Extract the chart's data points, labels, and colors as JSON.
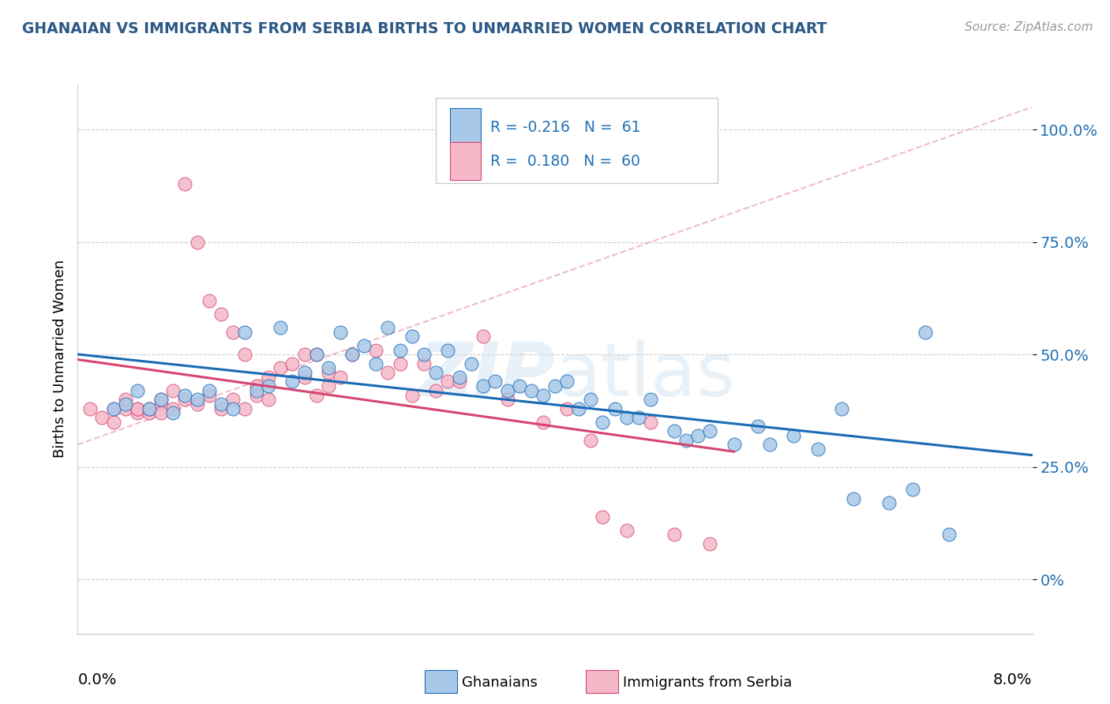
{
  "title": "GHANAIAN VS IMMIGRANTS FROM SERBIA BIRTHS TO UNMARRIED WOMEN CORRELATION CHART",
  "source": "Source: ZipAtlas.com",
  "ylabel": "Births to Unmarried Women",
  "ytick_vals": [
    0.0,
    0.25,
    0.5,
    0.75,
    1.0
  ],
  "ytick_labels": [
    "0%",
    "25.0%",
    "50.0%",
    "75.0%",
    "100.0%"
  ],
  "xlim": [
    0.0,
    0.08
  ],
  "ylim": [
    -0.12,
    1.1
  ],
  "color_blue": "#a8c8e8",
  "color_pink": "#f4b8c8",
  "color_blue_line": "#1a6bb5",
  "color_pink_line": "#d64570",
  "color_blue_dark": "#2171b5",
  "blue_scatter_x": [
    0.003,
    0.004,
    0.005,
    0.006,
    0.007,
    0.008,
    0.009,
    0.01,
    0.011,
    0.012,
    0.013,
    0.014,
    0.015,
    0.016,
    0.017,
    0.018,
    0.019,
    0.02,
    0.021,
    0.022,
    0.023,
    0.024,
    0.025,
    0.026,
    0.027,
    0.028,
    0.029,
    0.03,
    0.031,
    0.032,
    0.033,
    0.034,
    0.035,
    0.036,
    0.037,
    0.038,
    0.039,
    0.04,
    0.041,
    0.042,
    0.043,
    0.044,
    0.045,
    0.046,
    0.047,
    0.048,
    0.05,
    0.051,
    0.052,
    0.053,
    0.055,
    0.057,
    0.058,
    0.06,
    0.062,
    0.064,
    0.065,
    0.068,
    0.07,
    0.071,
    0.073
  ],
  "blue_scatter_y": [
    0.38,
    0.39,
    0.42,
    0.38,
    0.4,
    0.37,
    0.41,
    0.4,
    0.42,
    0.39,
    0.38,
    0.55,
    0.42,
    0.43,
    0.56,
    0.44,
    0.46,
    0.5,
    0.47,
    0.55,
    0.5,
    0.52,
    0.48,
    0.56,
    0.51,
    0.54,
    0.5,
    0.46,
    0.51,
    0.45,
    0.48,
    0.43,
    0.44,
    0.42,
    0.43,
    0.42,
    0.41,
    0.43,
    0.44,
    0.38,
    0.4,
    0.35,
    0.38,
    0.36,
    0.36,
    0.4,
    0.33,
    0.31,
    0.32,
    0.33,
    0.3,
    0.34,
    0.3,
    0.32,
    0.29,
    0.38,
    0.18,
    0.17,
    0.2,
    0.55,
    0.1
  ],
  "pink_scatter_x": [
    0.001,
    0.002,
    0.003,
    0.003,
    0.004,
    0.004,
    0.005,
    0.005,
    0.005,
    0.006,
    0.006,
    0.007,
    0.007,
    0.007,
    0.008,
    0.008,
    0.009,
    0.009,
    0.01,
    0.01,
    0.011,
    0.011,
    0.012,
    0.012,
    0.013,
    0.013,
    0.014,
    0.014,
    0.015,
    0.015,
    0.016,
    0.016,
    0.017,
    0.018,
    0.019,
    0.019,
    0.02,
    0.02,
    0.021,
    0.021,
    0.022,
    0.023,
    0.025,
    0.026,
    0.027,
    0.028,
    0.029,
    0.03,
    0.031,
    0.032,
    0.034,
    0.036,
    0.039,
    0.041,
    0.043,
    0.044,
    0.046,
    0.048,
    0.05,
    0.053
  ],
  "pink_scatter_y": [
    0.38,
    0.36,
    0.35,
    0.38,
    0.38,
    0.4,
    0.37,
    0.38,
    0.38,
    0.37,
    0.38,
    0.39,
    0.4,
    0.37,
    0.42,
    0.38,
    0.4,
    0.88,
    0.75,
    0.39,
    0.62,
    0.41,
    0.38,
    0.59,
    0.4,
    0.55,
    0.38,
    0.5,
    0.43,
    0.41,
    0.45,
    0.4,
    0.47,
    0.48,
    0.5,
    0.45,
    0.41,
    0.5,
    0.43,
    0.46,
    0.45,
    0.5,
    0.51,
    0.46,
    0.48,
    0.41,
    0.48,
    0.42,
    0.44,
    0.44,
    0.54,
    0.4,
    0.35,
    0.38,
    0.31,
    0.14,
    0.11,
    0.35,
    0.1,
    0.08
  ]
}
